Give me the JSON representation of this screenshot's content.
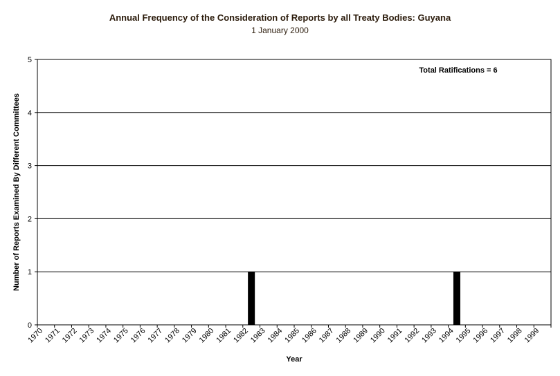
{
  "chart_data": {
    "type": "bar",
    "title": "Annual Frequency of the Consideration of Reports by all Treaty Bodies: Guyana",
    "subtitle": "1 January 2000",
    "xlabel": "Year",
    "ylabel": "Number of Reports Examined By Different Committees",
    "ylim": [
      0,
      5
    ],
    "yticks": [
      "0",
      "1",
      "2",
      "3",
      "4",
      "5"
    ],
    "grid": true,
    "annotation": "Total Ratifications = 6",
    "bar_color": "#000000",
    "categories": [
      "1970",
      "1971",
      "1972",
      "1973",
      "1974",
      "1975",
      "1976",
      "1977",
      "1978",
      "1979",
      "1980",
      "1981",
      "1982",
      "1983",
      "1984",
      "1985",
      "1986",
      "1987",
      "1988",
      "1989",
      "1990",
      "1991",
      "1992",
      "1993",
      "1994",
      "1995",
      "1996",
      "1997",
      "1998",
      "1999"
    ],
    "values": [
      0,
      0,
      0,
      0,
      0,
      0,
      0,
      0,
      0,
      0,
      0,
      0,
      1,
      0,
      0,
      0,
      0,
      0,
      0,
      0,
      0,
      0,
      0,
      0,
      1,
      0,
      0,
      0,
      0,
      0
    ]
  }
}
